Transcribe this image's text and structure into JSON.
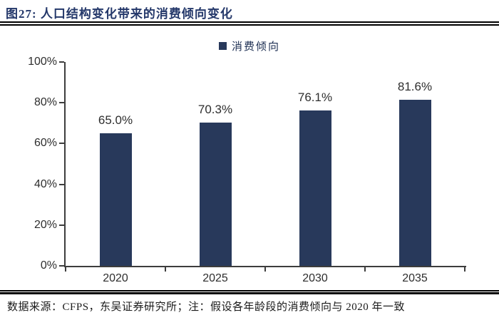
{
  "title": "图27: 人口结构变化带来的消费倾向变化",
  "legend": {
    "label": "消费倾向"
  },
  "footer": {
    "source_note": "数据来源：CFPS，东吴证券研究所；注：假设各年龄段的消费倾向与 2020 年一致"
  },
  "colors": {
    "bar": "#28395b",
    "title": "#24386a",
    "axis": "#3d3d3d",
    "rule": "#000000"
  },
  "chart_data": {
    "type": "bar",
    "title": "图27: 人口结构变化带来的消费倾向变化",
    "legend_entries": [
      "消费倾向"
    ],
    "legend_position": "top",
    "categories": [
      "2020",
      "2025",
      "2030",
      "2035"
    ],
    "values": [
      65.0,
      70.3,
      76.1,
      81.6
    ],
    "value_labels": [
      "65.0%",
      "70.3%",
      "76.1%",
      "81.6%"
    ],
    "xlabel": "",
    "ylabel": "",
    "ylim": [
      0,
      100
    ],
    "y_tick_labels": [
      "100%",
      "80%",
      "60%",
      "40%",
      "20%",
      "0%"
    ],
    "grid": false
  }
}
